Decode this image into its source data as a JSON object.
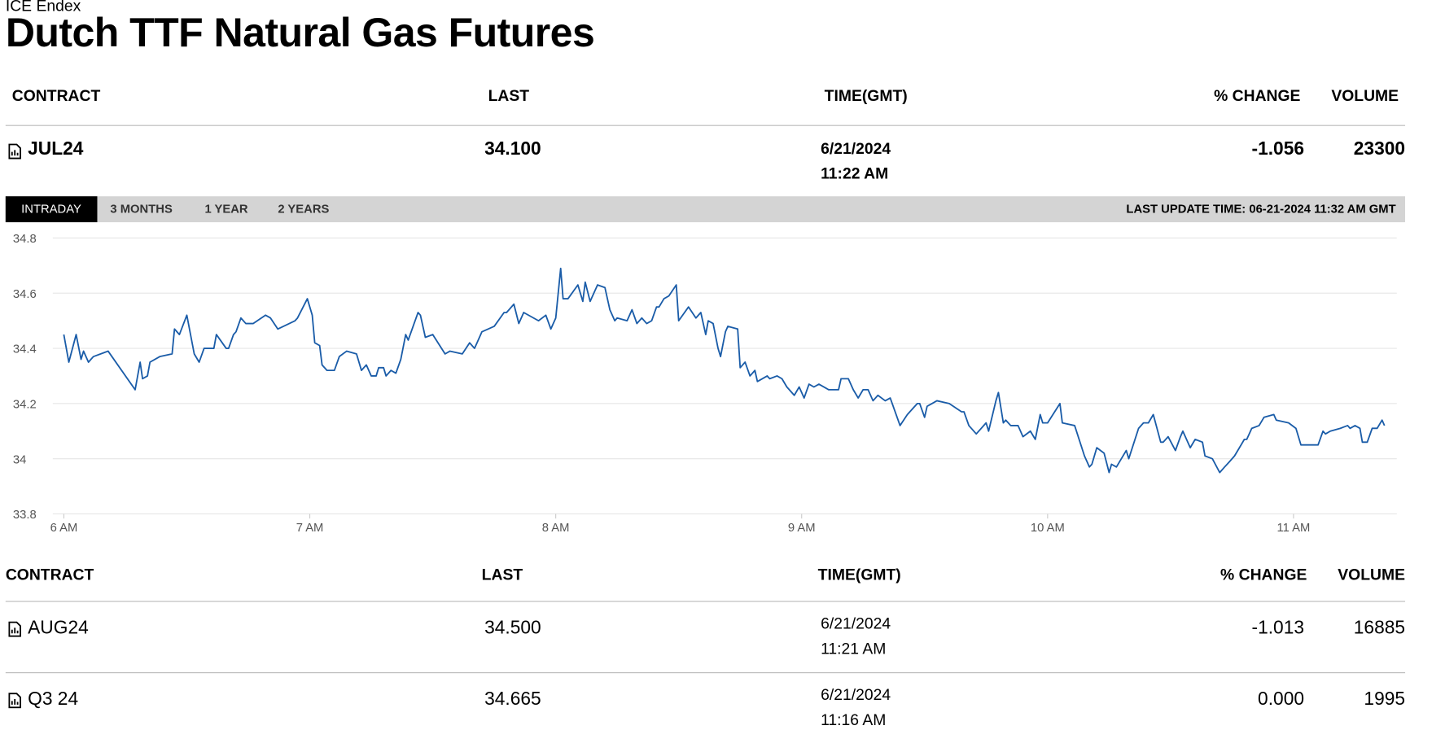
{
  "header": {
    "source": "ICE Endex",
    "title": "Dutch TTF Natural Gas Futures"
  },
  "main_table": {
    "columns": [
      "CONTRACT",
      "LAST",
      "TIME(GMT)",
      "% CHANGE",
      "VOLUME"
    ],
    "row": {
      "contract": "JUL24",
      "last": "34.100",
      "date": "6/21/2024",
      "time": "11:22 AM",
      "change": "-1.056",
      "volume": "23300"
    }
  },
  "tabs": [
    "INTRADAY",
    "3 MONTHS",
    "1 YEAR",
    "2 YEARS"
  ],
  "last_update": "LAST UPDATE TIME: 06-21-2024 11:32 AM GMT",
  "chart_data": {
    "type": "line",
    "color": "#1a5ca8",
    "grid": true,
    "x": [
      6.0,
      6.02,
      6.05,
      6.07,
      6.08,
      6.1,
      6.12,
      6.18,
      6.29,
      6.31,
      6.32,
      6.34,
      6.35,
      6.39,
      6.44,
      6.45,
      6.47,
      6.5,
      6.53,
      6.55,
      6.57,
      6.61,
      6.62,
      6.66,
      6.67,
      6.69,
      6.7,
      6.72,
      6.74,
      6.77,
      6.82,
      6.84,
      6.87,
      6.94,
      6.95,
      6.99,
      7.01,
      7.02,
      7.04,
      7.05,
      7.07,
      7.1,
      7.12,
      7.15,
      7.19,
      7.21,
      7.23,
      7.25,
      7.27,
      7.28,
      7.3,
      7.31,
      7.33,
      7.35,
      7.37,
      7.39,
      7.4,
      7.44,
      7.45,
      7.47,
      7.5,
      7.55,
      7.57,
      7.62,
      7.65,
      7.67,
      7.68,
      7.7,
      7.75,
      7.79,
      7.8,
      7.83,
      7.85,
      7.87,
      7.93,
      7.96,
      7.98,
      8.0,
      8.02,
      8.03,
      8.05,
      8.09,
      8.11,
      8.12,
      8.14,
      8.17,
      8.2,
      8.22,
      8.24,
      8.25,
      8.29,
      8.31,
      8.33,
      8.35,
      8.37,
      8.39,
      8.41,
      8.42,
      8.44,
      8.46,
      8.49,
      8.5,
      8.54,
      8.57,
      8.59,
      8.61,
      8.62,
      8.64,
      8.66,
      8.67,
      8.69,
      8.7,
      8.74,
      8.75,
      8.77,
      8.79,
      8.81,
      8.82,
      8.86,
      8.87,
      8.9,
      8.92,
      8.94,
      8.97,
      8.99,
      9.01,
      9.03,
      9.05,
      9.07,
      9.11,
      9.15,
      9.16,
      9.19,
      9.21,
      9.23,
      9.25,
      9.27,
      9.29,
      9.31,
      9.34,
      9.36,
      9.4,
      9.43,
      9.47,
      9.48,
      9.5,
      9.51,
      9.55,
      9.6,
      9.65,
      9.66,
      9.68,
      9.71,
      9.75,
      9.76,
      9.79,
      9.8,
      9.82,
      9.83,
      9.85,
      9.88,
      9.9,
      9.93,
      9.95,
      9.97,
      9.98,
      10.0,
      10.05,
      10.06,
      10.11,
      10.15,
      10.17,
      10.18,
      10.2,
      10.23,
      10.25,
      10.26,
      10.28,
      10.32,
      10.33,
      10.37,
      10.39,
      10.41,
      10.43,
      10.46,
      10.47,
      10.49,
      10.52,
      10.54,
      10.55,
      10.58,
      10.6,
      10.63,
      10.64,
      10.67,
      10.7,
      10.72,
      10.74,
      10.76,
      10.78,
      10.8,
      10.81,
      10.83,
      10.86,
      10.88,
      10.92,
      10.93,
      10.98,
      11.01,
      11.03,
      11.05,
      11.08,
      11.1,
      11.12,
      11.13,
      11.15,
      11.19,
      11.22,
      11.23,
      11.25,
      11.27,
      11.28,
      11.3,
      11.32,
      11.34,
      11.36,
      11.37
    ],
    "values": [
      34.45,
      34.35,
      34.45,
      34.36,
      34.39,
      34.35,
      34.37,
      34.39,
      34.25,
      34.35,
      34.29,
      34.3,
      34.35,
      34.37,
      34.38,
      34.47,
      34.45,
      34.52,
      34.38,
      34.35,
      34.4,
      34.4,
      34.45,
      34.4,
      34.4,
      34.45,
      34.46,
      34.51,
      34.49,
      34.49,
      34.52,
      34.51,
      34.47,
      34.5,
      34.51,
      34.58,
      34.52,
      34.42,
      34.41,
      34.34,
      34.32,
      34.32,
      34.37,
      34.39,
      34.38,
      34.32,
      34.34,
      34.3,
      34.3,
      34.33,
      34.33,
      34.3,
      34.32,
      34.31,
      34.36,
      34.45,
      34.43,
      34.53,
      34.52,
      34.44,
      34.45,
      34.38,
      34.39,
      34.38,
      34.42,
      34.4,
      34.42,
      34.46,
      34.48,
      34.53,
      34.53,
      34.56,
      34.49,
      34.53,
      34.5,
      34.52,
      34.47,
      34.51,
      34.69,
      34.58,
      34.58,
      34.63,
      34.57,
      34.64,
      34.57,
      34.63,
      34.62,
      34.54,
      34.5,
      34.51,
      34.5,
      34.54,
      34.49,
      34.51,
      34.49,
      34.5,
      34.55,
      34.55,
      34.58,
      34.59,
      34.63,
      34.5,
      34.55,
      34.51,
      34.53,
      34.45,
      34.5,
      34.49,
      34.4,
      34.37,
      34.46,
      34.48,
      34.47,
      34.33,
      34.35,
      34.3,
      34.32,
      34.28,
      34.3,
      34.29,
      34.3,
      34.29,
      34.26,
      34.23,
      34.26,
      34.22,
      34.27,
      34.26,
      34.27,
      34.25,
      34.25,
      34.29,
      34.29,
      34.25,
      34.22,
      34.25,
      34.25,
      34.21,
      34.23,
      34.21,
      34.22,
      34.12,
      34.16,
      34.2,
      34.2,
      34.15,
      34.19,
      34.21,
      34.2,
      34.17,
      34.17,
      34.12,
      34.09,
      34.13,
      34.1,
      34.21,
      34.24,
      34.13,
      34.14,
      34.12,
      34.12,
      34.08,
      34.1,
      34.07,
      34.16,
      34.13,
      34.13,
      34.2,
      34.13,
      34.12,
      34.01,
      33.97,
      33.98,
      34.04,
      34.02,
      33.95,
      33.98,
      33.97,
      34.03,
      34.0,
      34.11,
      34.13,
      34.13,
      34.16,
      34.06,
      34.06,
      34.08,
      34.03,
      34.08,
      34.1,
      34.04,
      34.07,
      34.06,
      34.01,
      34.0,
      33.95,
      33.97,
      33.99,
      34.01,
      34.04,
      34.07,
      34.07,
      34.11,
      34.12,
      34.15,
      34.16,
      34.14,
      34.13,
      34.11,
      34.05,
      34.05,
      34.05,
      34.05,
      34.1,
      34.09,
      34.1,
      34.11,
      34.12,
      34.11,
      34.12,
      34.11,
      34.06,
      34.06,
      34.11,
      34.11,
      34.14,
      34.12
    ],
    "xlim": [
      5.955,
      11.42
    ],
    "xticks": [
      {
        "value": 6,
        "label": "6 AM"
      },
      {
        "value": 7,
        "label": "7 AM"
      },
      {
        "value": 8,
        "label": "8 AM"
      },
      {
        "value": 9,
        "label": "9 AM"
      },
      {
        "value": 10,
        "label": "10 AM"
      },
      {
        "value": 11,
        "label": "11 AM"
      }
    ],
    "ylim": [
      33.8,
      34.8
    ],
    "yticks": [
      33.8,
      34,
      34.2,
      34.4,
      34.6,
      34.8
    ]
  },
  "other_contracts": {
    "columns": [
      "CONTRACT",
      "LAST",
      "TIME(GMT)",
      "% CHANGE",
      "VOLUME"
    ],
    "rows": [
      {
        "contract": "AUG24",
        "last": "34.500",
        "date": "6/21/2024",
        "time": "11:21 AM",
        "change": "-1.013",
        "volume": "16885"
      },
      {
        "contract": "Q3 24",
        "last": "34.665",
        "date": "6/21/2024",
        "time": "11:16 AM",
        "change": "0.000",
        "volume": "1995"
      }
    ]
  }
}
